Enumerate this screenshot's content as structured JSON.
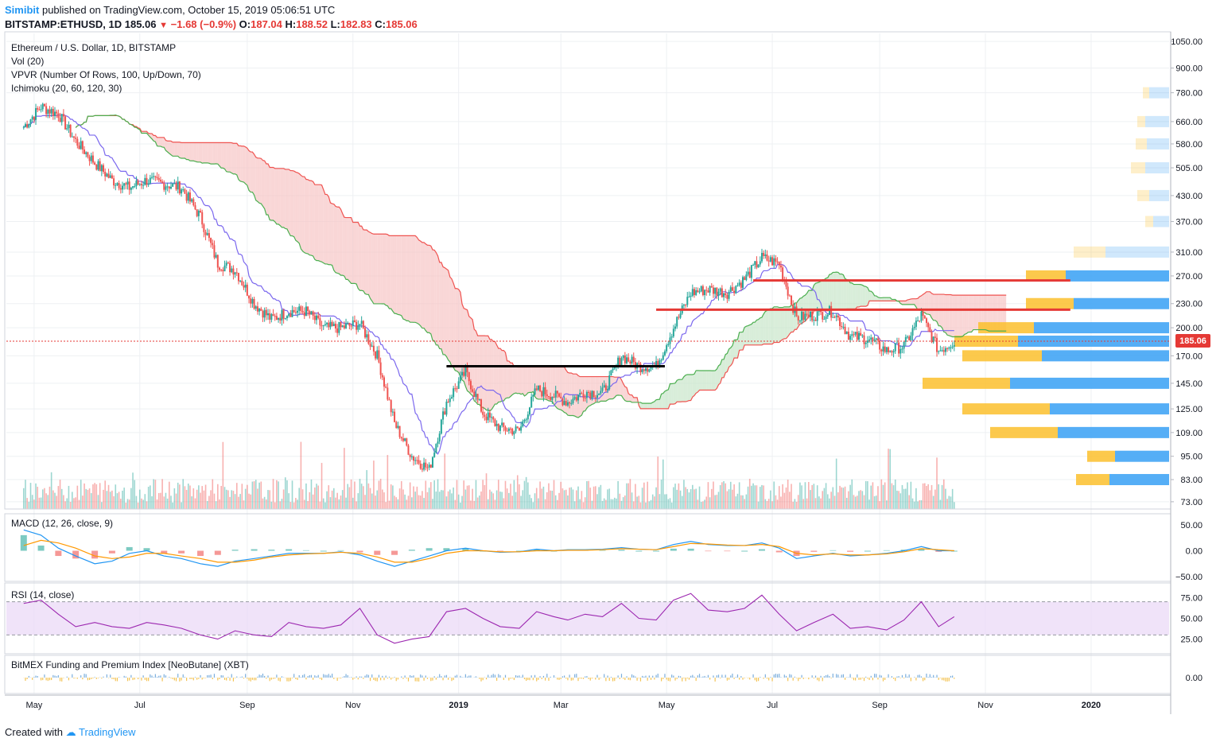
{
  "header": {
    "user": "Simibit",
    "published_text": "published on TradingView.com, October 15, 2019 05:06:51 UTC",
    "symbol": "BITSTAMP:ETHUSD, 1D",
    "last": "185.06",
    "arrow": "▼",
    "change": "−1.68 (−0.9%)",
    "o_label": "O:",
    "o_value": "187.04",
    "h_label": "H:",
    "h_value": "188.52",
    "l_label": "L:",
    "l_value": "182.83",
    "c_label": "C:",
    "c_value": "185.06"
  },
  "legend": {
    "title": "Ethereum / U.S. Dollar, 1D, BITSTAMP",
    "vol": "Vol (20)",
    "vpvr": "VPVR (Number Of Rows, 100, Up/Down, 70)",
    "ichimoku": "Ichimoku (20, 60, 120, 30)",
    "macd": "MACD (12, 26, close, 9)",
    "rsi": "RSI (14, close)",
    "funding": "BitMEX Funding and Premium Index [NeoButane] (XBT)"
  },
  "footer": {
    "created_with": "Created with",
    "brand": "TradingView"
  },
  "colors": {
    "up": "#26a69a",
    "down": "#ef5350",
    "kumo_bear": "#f6c5c5",
    "kumo_bull": "#c8e6c9",
    "tenkan": "#7b68ee",
    "kijun": "#4caf50",
    "span_b": "#ef5350",
    "vp_up": "#42a5f5",
    "vp_down": "#fbc02d",
    "macd": "#2196f3",
    "signal": "#ff9800",
    "rsi": "#9c27b0",
    "rsi_band": "#e9d7f7",
    "hline": "#e53935",
    "support": "#000000"
  },
  "chart_data": {
    "type": "candlestick",
    "symbol": "BITSTAMP:ETHUSD",
    "timeframe": "1D",
    "price_axis_ticks": [
      1050.0,
      900.0,
      780.0,
      660.0,
      580.0,
      505.0,
      430.0,
      370.0,
      310.0,
      270.0,
      230.0,
      200.0,
      170.0,
      145.0,
      125.0,
      109.0,
      95.0,
      83.0,
      73.0
    ],
    "price_axis_labels": [
      "1050.00",
      "900.00",
      "780.00",
      "660.00",
      "580.00",
      "505.00",
      "430.00",
      "370.00",
      "310.00",
      "270.00",
      "230.00",
      "200.00",
      "170.00",
      "145.00",
      "125.00",
      "109.00",
      "95.00",
      "83.00",
      "73.00"
    ],
    "time_axis_labels": [
      "May",
      "Jul",
      "Sep",
      "Nov",
      "2019",
      "Mar",
      "May",
      "Jul",
      "Sep",
      "Nov",
      "2020"
    ],
    "last_price": "185.06",
    "ylim": [
      70,
      1100
    ],
    "y_scale": "log",
    "close_series": {
      "dates": [
        "2018-04-25",
        "2018-05-05",
        "2018-05-15",
        "2018-05-25",
        "2018-06-05",
        "2018-06-15",
        "2018-06-25",
        "2018-07-05",
        "2018-07-15",
        "2018-07-25",
        "2018-08-05",
        "2018-08-15",
        "2018-08-25",
        "2018-09-05",
        "2018-09-15",
        "2018-09-25",
        "2018-10-05",
        "2018-10-15",
        "2018-10-25",
        "2018-11-05",
        "2018-11-15",
        "2018-11-25",
        "2018-12-05",
        "2018-12-15",
        "2018-12-25",
        "2019-01-05",
        "2019-01-15",
        "2019-01-25",
        "2019-02-05",
        "2019-02-15",
        "2019-02-25",
        "2019-03-05",
        "2019-03-15",
        "2019-03-25",
        "2019-04-05",
        "2019-04-15",
        "2019-04-25",
        "2019-05-05",
        "2019-05-15",
        "2019-05-25",
        "2019-06-05",
        "2019-06-15",
        "2019-06-25",
        "2019-07-05",
        "2019-07-15",
        "2019-07-25",
        "2019-08-05",
        "2019-08-15",
        "2019-08-25",
        "2019-09-05",
        "2019-09-15",
        "2019-09-25",
        "2019-10-05",
        "2019-10-14"
      ],
      "close": [
        640,
        720,
        690,
        590,
        520,
        470,
        450,
        470,
        460,
        450,
        380,
        290,
        280,
        230,
        210,
        220,
        220,
        200,
        200,
        205,
        170,
        115,
        95,
        88,
        130,
        155,
        122,
        112,
        110,
        140,
        135,
        130,
        138,
        137,
        170,
        160,
        160,
        200,
        245,
        250,
        245,
        265,
        300,
        290,
        212,
        215,
        220,
        190,
        188,
        175,
        180,
        215,
        175,
        185
      ]
    },
    "horizontal_levels": [
      {
        "price": 263,
        "color": "red"
      },
      {
        "price": 222,
        "color": "red"
      },
      {
        "price": 160,
        "color": "black"
      }
    ],
    "macd": {
      "axis_labels": [
        "50.00",
        "0.00",
        "−50.00"
      ],
      "macd_line": [
        40,
        30,
        5,
        -10,
        -25,
        -20,
        -5,
        0,
        -10,
        -15,
        -25,
        -30,
        -20,
        -15,
        -10,
        -5,
        -5,
        -5,
        -2,
        -8,
        -20,
        -30,
        -20,
        -10,
        0,
        5,
        0,
        -3,
        -2,
        3,
        0,
        2,
        2,
        3,
        6,
        3,
        2,
        12,
        18,
        12,
        10,
        10,
        15,
        5,
        -15,
        -10,
        -5,
        -10,
        -8,
        -5,
        0,
        8,
        0,
        0
      ],
      "signal_line": [
        10,
        20,
        15,
        5,
        -10,
        -15,
        -12,
        -5,
        -5,
        -10,
        -15,
        -22,
        -22,
        -18,
        -12,
        -8,
        -6,
        -5,
        -3,
        -5,
        -12,
        -22,
        -22,
        -15,
        -5,
        0,
        0,
        -2,
        -2,
        0,
        0,
        1,
        1,
        2,
        4,
        3,
        2,
        8,
        14,
        13,
        11,
        10,
        12,
        8,
        -5,
        -8,
        -6,
        -8,
        -8,
        -6,
        -2,
        4,
        2,
        0
      ]
    },
    "rsi": {
      "axis_labels": [
        "75.00",
        "50.00",
        "25.00"
      ],
      "upper_band": 70,
      "lower_band": 30,
      "values": [
        68,
        72,
        55,
        40,
        45,
        40,
        38,
        45,
        42,
        38,
        30,
        25,
        35,
        30,
        28,
        45,
        40,
        38,
        42,
        62,
        30,
        20,
        25,
        28,
        58,
        62,
        50,
        40,
        38,
        58,
        52,
        48,
        55,
        52,
        68,
        50,
        48,
        72,
        80,
        60,
        58,
        62,
        78,
        55,
        35,
        45,
        55,
        38,
        40,
        36,
        48,
        70,
        40,
        52
      ]
    },
    "funding": {
      "axis_labels": [
        "0.00"
      ]
    }
  }
}
